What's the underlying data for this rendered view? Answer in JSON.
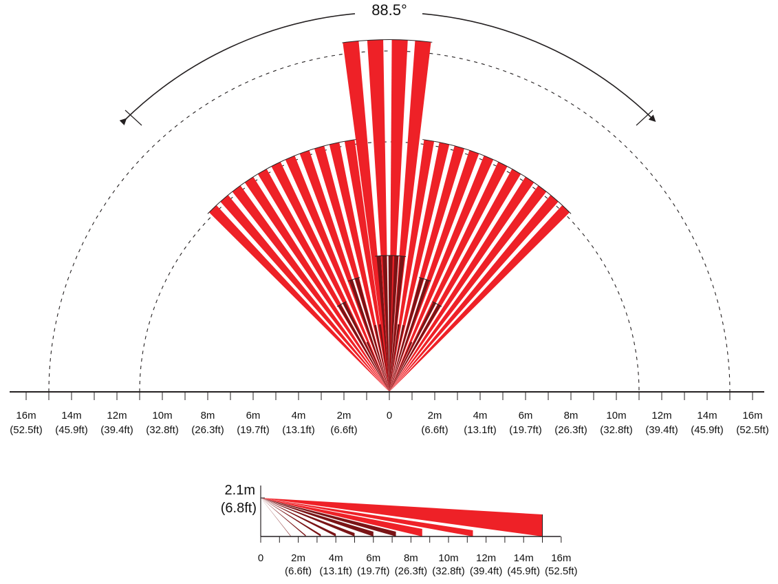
{
  "angle_label": "88.5°",
  "top_axis": {
    "ticks": [
      {
        "m": "16m",
        "ft": "(52.5ft)"
      },
      {
        "m": "14m",
        "ft": "(45.9ft)"
      },
      {
        "m": "12m",
        "ft": "(39.4ft)"
      },
      {
        "m": "10m",
        "ft": "(32.8ft)"
      },
      {
        "m": "8m",
        "ft": "(26.3ft)"
      },
      {
        "m": "6m",
        "ft": "(19.7ft)"
      },
      {
        "m": "4m",
        "ft": "(13.1ft)"
      },
      {
        "m": "2m",
        "ft": "(6.6ft)"
      },
      {
        "m": "0",
        "ft": ""
      },
      {
        "m": "2m",
        "ft": "(6.6ft)"
      },
      {
        "m": "4m",
        "ft": "(13.1ft)"
      },
      {
        "m": "6m",
        "ft": "(19.7ft)"
      },
      {
        "m": "8m",
        "ft": "(26.3ft)"
      },
      {
        "m": "10m",
        "ft": "(32.8ft)"
      },
      {
        "m": "12m",
        "ft": "(39.4ft)"
      },
      {
        "m": "14m",
        "ft": "(45.9ft)"
      },
      {
        "m": "16m",
        "ft": "(52.5ft)"
      }
    ]
  },
  "side_view": {
    "height_m": "2.1m",
    "height_ft": "(6.8ft)",
    "ticks": [
      {
        "m": "0",
        "ft": ""
      },
      {
        "m": "2m",
        "ft": "(6.6ft)"
      },
      {
        "m": "4m",
        "ft": "(13.1ft)"
      },
      {
        "m": "6m",
        "ft": "(19.7ft)"
      },
      {
        "m": "8m",
        "ft": "(26.3ft)"
      },
      {
        "m": "10m",
        "ft": "(32.8ft)"
      },
      {
        "m": "12m",
        "ft": "(39.4ft)"
      },
      {
        "m": "14m",
        "ft": "(45.9ft)"
      },
      {
        "m": "16m",
        "ft": "(52.5ft)"
      }
    ]
  },
  "colors": {
    "beam_red": "#ee2127",
    "beam_dark": "#7a1416",
    "axis": "#231f20"
  }
}
